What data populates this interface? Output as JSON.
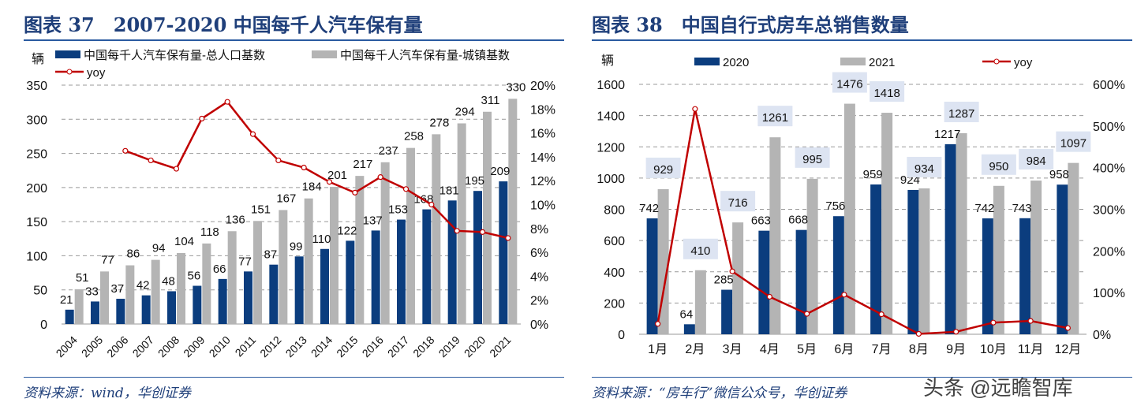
{
  "charts_header": [
    {
      "title": "图表 37　2007-2020 中国每千人汽车保有量",
      "source": "资料来源：wind，华创证券"
    },
    {
      "title": "图表 38　中国自行式房车总销售数量",
      "source": "资料来源：“房车行”微信公众号，华创证券"
    }
  ],
  "watermark": "头条 @远瞻智库",
  "colors": {
    "navy": "#0b3d7e",
    "gray": "#b4b4b4",
    "red": "#c00000"
  },
  "chart_data": [
    {
      "type": "bar",
      "ylabel": "辆",
      "ylim": [
        0,
        350
      ],
      "yticks": [
        0,
        50,
        100,
        150,
        200,
        250,
        300,
        350
      ],
      "y2lim": [
        0,
        20
      ],
      "y2ticks": [
        "0%",
        "2%",
        "4%",
        "6%",
        "8%",
        "10%",
        "12%",
        "14%",
        "16%",
        "18%",
        "20%"
      ],
      "grid": true,
      "legend": "top",
      "categories": [
        "2004",
        "2005",
        "2006",
        "2007",
        "2008",
        "2009",
        "2010",
        "2011",
        "2012",
        "2013",
        "2014",
        "2015",
        "2016",
        "2017",
        "2018",
        "2019",
        "2020",
        "2021"
      ],
      "series": [
        {
          "name": "中国每千人汽车保有量-总人口基数",
          "values": [
            21,
            33,
            37,
            42,
            48,
            56,
            66,
            77,
            87,
            99,
            110,
            122,
            137,
            153,
            168,
            181,
            195,
            209
          ]
        },
        {
          "name": "中国每千人汽车保有量-城镇基数",
          "values": [
            51,
            77,
            86,
            94,
            104,
            118,
            136,
            151,
            167,
            184,
            201,
            217,
            237,
            258,
            278,
            294,
            311,
            330
          ]
        },
        {
          "name": "yoy",
          "type": "line",
          "axis": "right",
          "values": [
            null,
            null,
            14.5,
            13.7,
            13.0,
            17.2,
            18.6,
            15.9,
            13.7,
            13.1,
            11.9,
            11.0,
            12.3,
            11.3,
            10.0,
            7.8,
            7.7,
            7.2
          ]
        }
      ]
    },
    {
      "type": "bar",
      "ylabel": "辆",
      "ylim": [
        0,
        1600
      ],
      "yticks": [
        0,
        200,
        400,
        600,
        800,
        1000,
        1200,
        1400,
        1600
      ],
      "y2lim": [
        0,
        600
      ],
      "y2ticks": [
        "0%",
        "100%",
        "200%",
        "300%",
        "400%",
        "500%",
        "600%"
      ],
      "grid": true,
      "legend": "top",
      "categories": [
        "1月",
        "2月",
        "3月",
        "4月",
        "5月",
        "6月",
        "7月",
        "8月",
        "9月",
        "10月",
        "11月",
        "12月"
      ],
      "series": [
        {
          "name": "2020",
          "values": [
            742,
            64,
            285,
            663,
            668,
            756,
            959,
            924,
            1217,
            742,
            743,
            958
          ]
        },
        {
          "name": "2021",
          "values": [
            929,
            410,
            716,
            1261,
            995,
            1476,
            1418,
            934,
            1287,
            950,
            984,
            1097
          ]
        },
        {
          "name": "yoy",
          "type": "line",
          "axis": "right",
          "values": [
            25,
            541,
            151,
            90,
            49,
            95,
            48,
            1,
            6,
            28,
            32,
            15
          ]
        }
      ]
    }
  ]
}
